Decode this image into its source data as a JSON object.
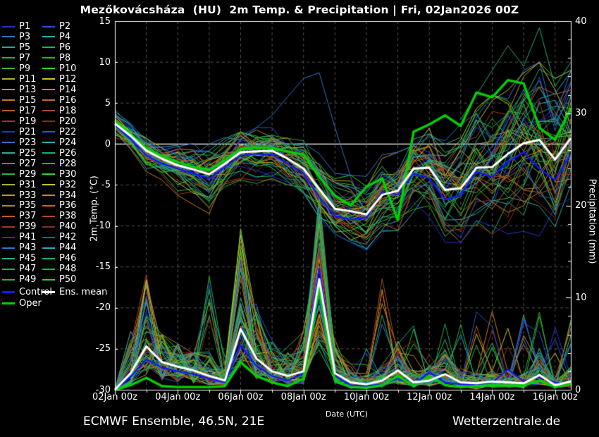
{
  "chart": {
    "title": "Mezőkovácsháza  (HU)  2m Temp. & Precipitation | Fri, 02Jan2026 00Z",
    "footer_left": "ECMWF Ensemble, 46.5N, 21E",
    "footer_right": "Wetterzentrale.de",
    "x_axis_label": "Date (UTC)",
    "y_axis_left_label": "2m Temp. (°C)",
    "y_axis_right_label": "Precipitation (mm)"
  },
  "legend": {
    "members": [
      "P1",
      "P2",
      "P3",
      "P4",
      "P5",
      "P6",
      "P7",
      "P8",
      "P9",
      "P10",
      "P11",
      "P12",
      "P13",
      "P14",
      "P15",
      "P16",
      "P17",
      "P18",
      "P19",
      "P20",
      "P21",
      "P22",
      "P23",
      "P24",
      "P25",
      "P26",
      "P27",
      "P28",
      "P29",
      "P30",
      "P31",
      "P32",
      "P33",
      "P34",
      "P35",
      "P36",
      "P37",
      "P38",
      "P39",
      "P40",
      "P41",
      "P42",
      "P43",
      "P44",
      "P45",
      "P46",
      "P47",
      "P48",
      "P49",
      "P50"
    ],
    "control_label": "Control",
    "mean_label": "Ens. mean",
    "oper_label": "Oper"
  },
  "chart_data": {
    "type": "line",
    "title": "Mezőkovácsháza (HU) 2m Temp. & Precipitation | Fri, 02Jan2026 00Z",
    "x_unit": "days since 02Jan2026 00Z, 12h steps",
    "x_days": [
      0,
      0.5,
      1,
      1.5,
      2,
      2.5,
      3,
      3.5,
      4,
      4.5,
      5,
      5.5,
      6,
      6.5,
      7,
      7.5,
      8,
      8.5,
      9,
      9.5,
      10,
      10.5,
      11,
      11.5,
      12,
      12.5,
      13,
      13.5,
      14,
      14.5
    ],
    "x_tick_days": [
      0,
      2,
      4,
      6,
      8,
      10,
      12,
      14
    ],
    "x_tick_labels": [
      "02Jan 00z",
      "04Jan 00z",
      "06Jan 00z",
      "08Jan 00z",
      "10Jan 00z",
      "12Jan 00z",
      "14Jan 00z",
      "16Jan 00z"
    ],
    "x_range_days": [
      0,
      14.5
    ],
    "grid": true,
    "legend_position": "left",
    "temp_axis": {
      "min": -30,
      "max": 15,
      "ticks": [
        15,
        10,
        5,
        0,
        -5,
        -10,
        -15,
        -20,
        -25,
        -30
      ],
      "zero_line": true
    },
    "precip_axis": {
      "min": 0,
      "max": 40,
      "ticks": [
        40,
        30,
        20,
        10,
        0
      ],
      "minor_tick_step": 2
    },
    "series": {
      "ens_mean_temp": [
        2.5,
        1.0,
        -0.8,
        -1.8,
        -2.6,
        -3.1,
        -3.7,
        -2.4,
        -1.0,
        -0.9,
        -0.8,
        -1.8,
        -3.0,
        -5.5,
        -7.9,
        -8.2,
        -8.6,
        -6.2,
        -5.7,
        -3.0,
        -2.9,
        -5.6,
        -5.4,
        -2.9,
        -2.8,
        -1.2,
        0.1,
        0.5,
        -1.9,
        0.7
      ],
      "control_temp": [
        2.3,
        0.6,
        -1.4,
        -2.4,
        -3.0,
        -3.6,
        -4.2,
        -2.8,
        -1.4,
        -1.2,
        -1.3,
        -2.4,
        -3.6,
        -6.5,
        -8.8,
        -9.2,
        -9.0,
        -5.8,
        -6.2,
        -3.6,
        -4.2,
        -6.8,
        -6.2,
        -3.4,
        -4.0,
        -2.2,
        -1.0,
        -3.0,
        -4.4,
        -1.2
      ],
      "oper_temp": [
        2.8,
        1.2,
        -0.5,
        -1.5,
        -2.2,
        -2.8,
        -3.2,
        -2.0,
        -0.6,
        -0.4,
        -0.5,
        -0.9,
        -1.3,
        -4.0,
        -6.3,
        -7.5,
        -5.2,
        -4.2,
        -9.3,
        1.5,
        2.4,
        3.5,
        2.2,
        6.3,
        5.7,
        7.8,
        7.4,
        2.0,
        0.5,
        4.4
      ],
      "ens_mean_precip": [
        0,
        1.8,
        4.7,
        3.0,
        2.5,
        2.1,
        1.5,
        1.0,
        6.6,
        3.4,
        2.0,
        1.5,
        2.0,
        12.0,
        1.8,
        0.8,
        0.6,
        1.0,
        2.1,
        0.8,
        1.0,
        1.7,
        0.8,
        0.7,
        0.9,
        0.8,
        0.7,
        1.6,
        0.5,
        0.9
      ],
      "control_precip": [
        0,
        1.4,
        3.3,
        2.4,
        2.0,
        1.7,
        1.2,
        0.8,
        4.8,
        2.6,
        1.5,
        1.0,
        1.8,
        13.2,
        1.5,
        0.5,
        0.4,
        0.6,
        1.2,
        0.5,
        1.9,
        0.8,
        0.6,
        0.5,
        0.8,
        2.2,
        0.9,
        1.4,
        0.8,
        0.5
      ],
      "oper_precip": [
        0,
        0.5,
        1.3,
        0.4,
        0.3,
        0.3,
        0.3,
        0.4,
        3.0,
        1.5,
        0.8,
        0.4,
        1.2,
        11.2,
        1.0,
        0.3,
        0.2,
        0.5,
        1.5,
        0.4,
        1.5,
        0.5,
        0.3,
        0.4,
        0.5,
        0.4,
        0.5,
        1.0,
        0.3,
        0.6
      ]
    },
    "ensemble": {
      "count": 50,
      "temp_envelope_min": [
        0.8,
        -2.0,
        -4.5,
        -6.0,
        -7.0,
        -7.8,
        -8.5,
        -6.5,
        -6.5,
        -6.0,
        -5.5,
        -5.0,
        -6.0,
        -9.0,
        -11.0,
        -12.0,
        -13.0,
        -11.0,
        -11.0,
        -9.0,
        -10.0,
        -12.0,
        -12.0,
        -10.0,
        -11.0,
        -12.0,
        -13.0,
        -14.0,
        -15.0,
        -13.0
      ],
      "temp_envelope_max": [
        5.0,
        2.5,
        1.0,
        0.0,
        0.5,
        1.0,
        1.5,
        1.5,
        1.5,
        2.0,
        2.0,
        2.5,
        2.0,
        0.0,
        -2.0,
        -3.0,
        -3.5,
        -1.0,
        -1.0,
        2.0,
        3.0,
        3.0,
        4.0,
        6.5,
        7.0,
        8.0,
        9.0,
        10.0,
        8.0,
        9.0
      ],
      "precip_envelope_max": [
        0.2,
        8,
        12.5,
        6,
        5,
        4,
        13,
        4,
        17.5,
        10,
        6,
        5,
        8,
        21,
        6,
        4,
        5,
        14,
        6,
        8,
        7,
        9,
        8,
        10,
        9,
        8,
        10,
        9,
        8,
        9
      ],
      "outlier_blue_spike_temp": [
        2.2,
        0.8,
        -1.2,
        -2.2,
        -3.0,
        -1.5,
        0.0,
        0.8,
        0.5,
        2.0,
        3.5,
        5.8,
        8.0,
        8.7,
        2.0,
        -4.0,
        -9.0,
        -6.0,
        -5.0,
        -3.0,
        -2.0,
        -5.0,
        -6.0,
        -3.0,
        -3.5,
        -2.0,
        -1.0,
        0.0,
        -2.0,
        0.0
      ],
      "outlier_warm_spike_temp": [
        null,
        null,
        null,
        null,
        null,
        null,
        null,
        null,
        null,
        null,
        null,
        null,
        null,
        null,
        null,
        null,
        null,
        null,
        null,
        null,
        null,
        null,
        3.0,
        6.0,
        9.0,
        12.0,
        9.5,
        14.2,
        7.0,
        10.0
      ]
    },
    "colors": {
      "palette20": [
        "#2236c8",
        "#2853d4",
        "#2d74cf",
        "#29a8c4",
        "#24ad9a",
        "#1fae74",
        "#21ad52",
        "#27b23d",
        "#30b52f",
        "#2ed32e",
        "#a8b424",
        "#c9c41f",
        "#b49e1f",
        "#c28d1f",
        "#c67d1f",
        "#c26d1f",
        "#bf5a20",
        "#b24a24",
        "#a23824",
        "#8e2b20"
      ],
      "control": "#1414ff",
      "mean": "#ffffff",
      "oper": "#00d200",
      "outlier_blue": "#2d74cf",
      "outlier_warm": "#1fae74",
      "grid": "#55554a",
      "zero_line": "#ffffff",
      "frame": "#ffffff",
      "background": "#000000"
    }
  }
}
